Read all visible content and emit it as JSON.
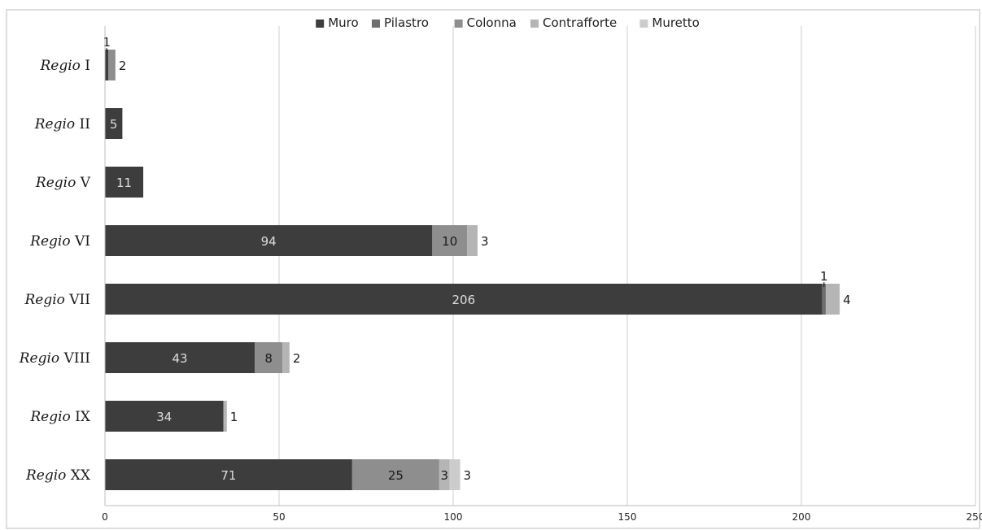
{
  "chart_data": {
    "type": "bar",
    "orientation": "horizontal",
    "stacked": true,
    "categories": [
      {
        "prefix": "Regio",
        "numeral": "I"
      },
      {
        "prefix": "Regio",
        "numeral": "II"
      },
      {
        "prefix": "Regio",
        "numeral": "V"
      },
      {
        "prefix": "Regio",
        "numeral": "VI"
      },
      {
        "prefix": "Regio",
        "numeral": "VII"
      },
      {
        "prefix": "Regio",
        "numeral": "VIII"
      },
      {
        "prefix": "Regio",
        "numeral": "IX"
      },
      {
        "prefix": "Regio",
        "numeral": "XX"
      }
    ],
    "series": [
      {
        "name": "Muro",
        "color": "#3d3d3d",
        "label_color": "#dddddd",
        "values": [
          1,
          5,
          11,
          94,
          206,
          43,
          34,
          71
        ]
      },
      {
        "name": "Pilastro",
        "color": "#6e6e6e",
        "label_color": "#1a1a1a",
        "values": [
          0,
          0,
          0,
          0,
          1,
          0,
          0,
          0
        ]
      },
      {
        "name": "Colonna",
        "color": "#8e8e8e",
        "label_color": "#1a1a1a",
        "values": [
          2,
          0,
          0,
          10,
          0,
          8,
          0,
          25
        ]
      },
      {
        "name": "Contrafforte",
        "color": "#b5b5b5",
        "label_color": "#1a1a1a",
        "values": [
          0,
          0,
          0,
          3,
          4,
          2,
          1,
          3
        ]
      },
      {
        "name": "Muretto",
        "color": "#cccccc",
        "label_color": "#1a1a1a",
        "values": [
          0,
          0,
          0,
          0,
          0,
          0,
          0,
          3
        ]
      }
    ],
    "xlim": [
      0,
      250
    ],
    "xticks": [
      0,
      50,
      100,
      150,
      200,
      250
    ],
    "grid": "vertical",
    "legend_position": "top"
  }
}
